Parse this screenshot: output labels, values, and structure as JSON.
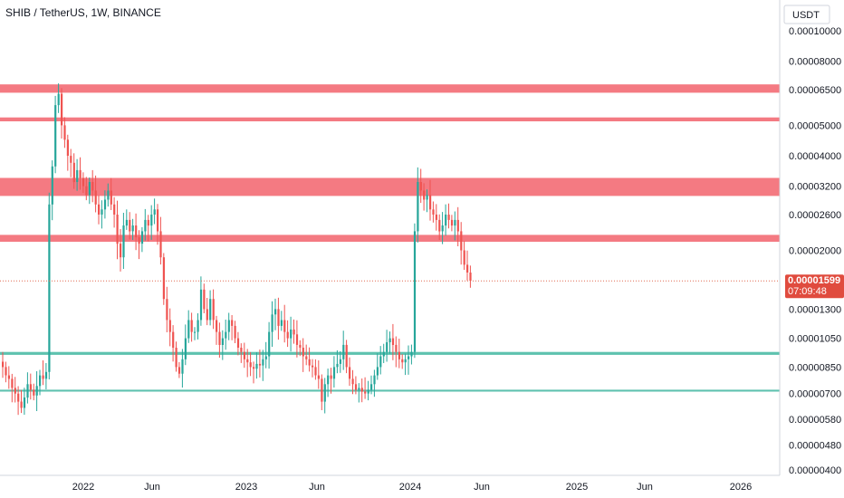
{
  "chart_data": {
    "type": "candlestick",
    "title": "SHIB / TetherUS, 1W, BINANCE",
    "currency_label": "USDT",
    "scale": "log",
    "y_range": [
      3.9e-06,
      1.16e-05
    ],
    "y_ticks": [
      "0.00010000",
      "0.00008000",
      "0.00006500",
      "0.00005000",
      "0.00004000",
      "0.00003200",
      "0.00002600",
      "0.00002000",
      "0.00001300",
      "0.00001050",
      "0.00000850",
      "0.00000700",
      "0.00000580",
      "0.00000480",
      "0.00000400"
    ],
    "x_ticks": [
      "2022",
      "Jun",
      "2023",
      "Jun",
      "2024",
      "Jun",
      "2025",
      "Jun",
      "2026"
    ],
    "last_price": "0.00001599",
    "countdown": "07:09:48",
    "resistance_zones": [
      {
        "low": 6.35e-05,
        "high": 6.75e-05
      },
      {
        "low": 5.15e-05,
        "high": 5.3e-05
      },
      {
        "low": 2.98e-05,
        "high": 3.4e-05
      },
      {
        "low": 2.13e-05,
        "high": 2.24e-05
      }
    ],
    "support_zones": [
      {
        "low": 9.3e-06,
        "high": 9.5e-06
      },
      {
        "low": 7.1e-06,
        "high": 7.2e-06
      }
    ],
    "candle_closes": [
      8.5e-06,
      8e-06,
      7.8e-06,
      7.3e-06,
      7e-06,
      6.6e-06,
      6.3e-06,
      6.8e-06,
      7.5e-06,
      7.2e-06,
      6.9e-06,
      7.4e-06,
      8e-06,
      7.8e-06,
      8.2e-06,
      2.8e-05,
      3.7e-05,
      5.8e-05,
      6.3e-05,
      5e-05,
      4.5e-05,
      4e-05,
      3.8e-05,
      3.3e-05,
      3.6e-05,
      3.4e-05,
      3.2e-05,
      3e-05,
      3.3e-05,
      3.1e-05,
      2.8e-05,
      2.6e-05,
      2.7e-05,
      2.9e-05,
      3.1e-05,
      2.8e-05,
      2.6e-05,
      2.1e-05,
      1.9e-05,
      2.4e-05,
      2.5e-05,
      2.3e-05,
      2.4e-05,
      2.2e-05,
      2.1e-05,
      2.3e-05,
      2.5e-05,
      2.4e-05,
      2.6e-05,
      2.7e-05,
      2.3e-05,
      1.9e-05,
      1.4e-05,
      1.2e-05,
      1.1e-05,
      9.8e-06,
      8.5e-06,
      8.1e-06,
      9e-06,
      1.05e-05,
      1.2e-05,
      1.1e-05,
      1.1e-05,
      1.2e-05,
      1.5e-05,
      1.3e-05,
      1.2e-05,
      1.4e-05,
      1.2e-05,
      1.1e-05,
      1e-05,
      1.05e-05,
      1.1e-05,
      1.2e-05,
      1.15e-05,
      1.05e-05,
      9.8e-06,
      9.5e-06,
      9e-06,
      8.8e-06,
      8.5e-06,
      8.4e-06,
      8.7e-06,
      8.6e-06,
      9e-06,
      9.2e-06,
      1.1e-05,
      1.25e-05,
      1.3e-05,
      1.15e-05,
      1.2e-05,
      1.1e-05,
      1.05e-05,
      1.12e-05,
      1.08e-05,
      1e-05,
      9.8e-06,
      9.2e-06,
      9e-06,
      8.6e-06,
      8.5e-06,
      8e-06,
      7.8e-06,
      6.6e-06,
      7.5e-06,
      8e-06,
      7.8e-06,
      8.5e-06,
      8.7e-06,
      9e-06,
      1e-05,
      8.5e-06,
      7.8e-06,
      7.5e-06,
      7.2e-06,
      7.3e-06,
      7.1e-06,
      7e-06,
      7.2e-06,
      7.5e-06,
      8e-06,
      8.5e-06,
      9.2e-06,
      9.5e-06,
      1.02e-05,
      1.05e-05,
      1e-05,
      9.5e-06,
      9e-06,
      8.8e-06,
      9e-06,
      9.2e-06,
      9.5e-06,
      2.3e-05,
      3.3e-05,
      3.1e-05,
      2.9e-05,
      3e-05,
      2.7e-05,
      2.6e-05,
      2.5e-05,
      2.3e-05,
      2.4e-05,
      2.6e-05,
      2.5e-05,
      2.4e-05,
      2.5e-05,
      2.3e-05,
      2e-05,
      1.8e-05,
      1.7e-05,
      1.6e-05
    ]
  }
}
